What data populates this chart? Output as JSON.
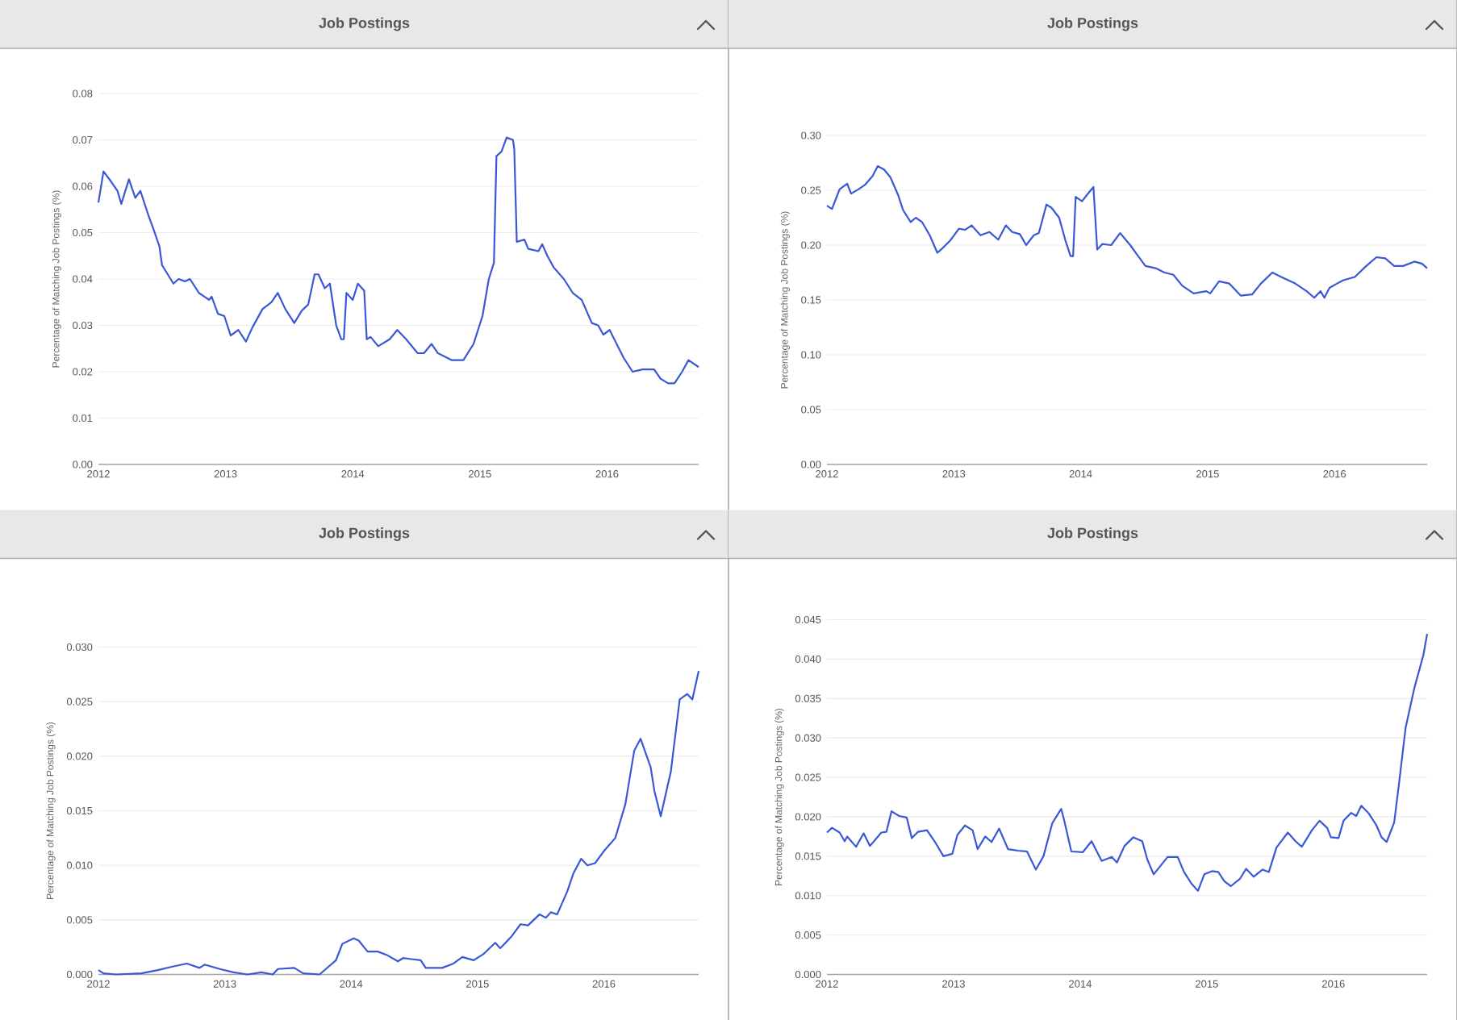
{
  "chart_data": [
    {
      "type": "line",
      "title": "Job Postings",
      "ylabel": "Percentage of Matching Job Postings (%)",
      "color": "#3a57d6",
      "grid": "y",
      "xlim": [
        2012,
        2016.72
      ],
      "ylim": [
        0,
        0.08
      ],
      "xticks": [
        2012,
        2013,
        2014,
        2015,
        2016
      ],
      "yticks": [
        {
          "value": 0,
          "label": "0.00"
        },
        {
          "value": 0.01,
          "label": "0.01"
        },
        {
          "value": 0.02,
          "label": "0.02"
        },
        {
          "value": 0.03,
          "label": "0.03"
        },
        {
          "value": 0.04,
          "label": "0.04"
        },
        {
          "value": 0.05,
          "label": "0.05"
        },
        {
          "value": 0.06,
          "label": "0.06"
        },
        {
          "value": 0.07,
          "label": "0.07"
        },
        {
          "value": 0.08,
          "label": "0.08"
        }
      ],
      "x": [
        2012,
        2012.04,
        2012.1,
        2012.15,
        2012.18,
        2012.24,
        2012.29,
        2012.33,
        2012.39,
        2012.43,
        2012.48,
        2012.5,
        2012.59,
        2012.63,
        2012.68,
        2012.72,
        2012.79,
        2012.87,
        2012.89,
        2012.94,
        2012.99,
        2013.04,
        2013.1,
        2013.16,
        2013.21,
        2013.29,
        2013.36,
        2013.41,
        2013.47,
        2013.54,
        2013.6,
        2013.65,
        2013.7,
        2013.73,
        2013.78,
        2013.82,
        2013.87,
        2013.91,
        2013.93,
        2013.95,
        2014,
        2014.04,
        2014.09,
        2014.11,
        2014.14,
        2014.2,
        2014.29,
        2014.35,
        2014.42,
        2014.51,
        2014.56,
        2014.62,
        2014.67,
        2014.78,
        2014.87,
        2014.95,
        2015.02,
        2015.07,
        2015.11,
        2015.13,
        2015.17,
        2015.21,
        2015.26,
        2015.27,
        2015.29,
        2015.35,
        2015.38,
        2015.46,
        2015.49,
        2015.53,
        2015.58,
        2015.66,
        2015.73,
        2015.8,
        2015.88,
        2015.93,
        2015.97,
        2016.02,
        2016.13,
        2016.2,
        2016.28,
        2016.37,
        2016.42,
        2016.48,
        2016.53,
        2016.59,
        2016.64,
        2016.72
      ],
      "values": [
        0.0565,
        0.0632,
        0.061,
        0.059,
        0.0562,
        0.0615,
        0.0575,
        0.059,
        0.054,
        0.051,
        0.047,
        0.043,
        0.039,
        0.04,
        0.0395,
        0.04,
        0.037,
        0.0355,
        0.0362,
        0.0325,
        0.032,
        0.0278,
        0.029,
        0.0265,
        0.0295,
        0.0335,
        0.035,
        0.037,
        0.0335,
        0.0305,
        0.0332,
        0.0345,
        0.041,
        0.041,
        0.038,
        0.039,
        0.03,
        0.027,
        0.027,
        0.037,
        0.0355,
        0.039,
        0.0375,
        0.027,
        0.0275,
        0.0255,
        0.027,
        0.029,
        0.027,
        0.024,
        0.024,
        0.026,
        0.024,
        0.0225,
        0.0225,
        0.026,
        0.032,
        0.04,
        0.0435,
        0.0665,
        0.0675,
        0.0705,
        0.07,
        0.068,
        0.048,
        0.0485,
        0.0465,
        0.046,
        0.0475,
        0.045,
        0.0425,
        0.04,
        0.037,
        0.0355,
        0.0305,
        0.03,
        0.028,
        0.029,
        0.023,
        0.02,
        0.0205,
        0.0205,
        0.0185,
        0.0175,
        0.0175,
        0.02,
        0.0225,
        0.021
      ]
    },
    {
      "type": "line",
      "title": "Job Postings",
      "ylabel": "Percentage of Matching Job Postings (%)",
      "color": "#3a57d6",
      "grid": "y",
      "xlim": [
        2012,
        2016.73
      ],
      "ylim": [
        0,
        0.3
      ],
      "xticks": [
        2012,
        2013,
        2014,
        2015,
        2016
      ],
      "yticks": [
        {
          "value": 0,
          "label": "0.00"
        },
        {
          "value": 0.05,
          "label": "0.05"
        },
        {
          "value": 0.1,
          "label": "0.10"
        },
        {
          "value": 0.15,
          "label": "0.15"
        },
        {
          "value": 0.2,
          "label": "0.20"
        },
        {
          "value": 0.25,
          "label": "0.25"
        },
        {
          "value": 0.3,
          "label": "0.30"
        }
      ],
      "x": [
        2012,
        2012.04,
        2012.1,
        2012.16,
        2012.19,
        2012.25,
        2012.3,
        2012.36,
        2012.4,
        2012.45,
        2012.5,
        2012.56,
        2012.6,
        2012.66,
        2012.7,
        2012.75,
        2012.81,
        2012.87,
        2012.9,
        2012.97,
        2013.04,
        2013.09,
        2013.14,
        2013.21,
        2013.28,
        2013.35,
        2013.41,
        2013.46,
        2013.52,
        2013.57,
        2013.63,
        2013.67,
        2013.73,
        2013.77,
        2013.83,
        2013.88,
        2013.92,
        2013.94,
        2013.96,
        2014.01,
        2014.05,
        2014.1,
        2014.13,
        2014.17,
        2014.24,
        2014.31,
        2014.39,
        2014.44,
        2014.51,
        2014.59,
        2014.66,
        2014.73,
        2014.8,
        2014.89,
        2014.99,
        2015.02,
        2015.09,
        2015.17,
        2015.26,
        2015.35,
        2015.42,
        2015.51,
        2015.58,
        2015.69,
        2015.78,
        2015.84,
        2015.89,
        2015.92,
        2015.96,
        2016.02,
        2016.07,
        2016.16,
        2016.25,
        2016.33,
        2016.4,
        2016.47,
        2016.54,
        2016.63,
        2016.69,
        2016.73
      ],
      "values": [
        0.236,
        0.233,
        0.251,
        0.256,
        0.247,
        0.251,
        0.255,
        0.263,
        0.272,
        0.269,
        0.262,
        0.246,
        0.232,
        0.221,
        0.225,
        0.221,
        0.209,
        0.193,
        0.196,
        0.204,
        0.215,
        0.214,
        0.218,
        0.209,
        0.212,
        0.205,
        0.218,
        0.212,
        0.21,
        0.2,
        0.209,
        0.211,
        0.237,
        0.234,
        0.225,
        0.204,
        0.19,
        0.19,
        0.244,
        0.24,
        0.246,
        0.253,
        0.196,
        0.201,
        0.2,
        0.211,
        0.2,
        0.192,
        0.181,
        0.179,
        0.175,
        0.173,
        0.163,
        0.156,
        0.158,
        0.156,
        0.167,
        0.165,
        0.154,
        0.155,
        0.165,
        0.175,
        0.171,
        0.165,
        0.158,
        0.152,
        0.158,
        0.152,
        0.161,
        0.165,
        0.168,
        0.171,
        0.181,
        0.189,
        0.188,
        0.181,
        0.181,
        0.185,
        0.183,
        0.179
      ]
    },
    {
      "type": "line",
      "title": "Job Postings",
      "ylabel": "Percentage of Matching Job Postings (%)",
      "color": "#3a57d6",
      "grid": "y",
      "xlim": [
        2012,
        2016.75
      ],
      "ylim": [
        0,
        0.03
      ],
      "xticks": [
        2012,
        2013,
        2014,
        2015,
        2016
      ],
      "yticks": [
        {
          "value": 0,
          "label": "0.000"
        },
        {
          "value": 0.005,
          "label": "0.005"
        },
        {
          "value": 0.01,
          "label": "0.010"
        },
        {
          "value": 0.015,
          "label": "0.015"
        },
        {
          "value": 0.02,
          "label": "0.020"
        },
        {
          "value": 0.025,
          "label": "0.025"
        },
        {
          "value": 0.03,
          "label": "0.030"
        }
      ],
      "x": [
        2012,
        2012.04,
        2012.14,
        2012.34,
        2012.47,
        2012.58,
        2012.7,
        2012.8,
        2012.84,
        2012.96,
        2013.07,
        2013.18,
        2013.29,
        2013.38,
        2013.42,
        2013.55,
        2013.62,
        2013.75,
        2013.8,
        2013.88,
        2013.93,
        2014.02,
        2014.06,
        2014.13,
        2014.21,
        2014.28,
        2014.37,
        2014.41,
        2014.55,
        2014.59,
        2014.72,
        2014.81,
        2014.88,
        2014.97,
        2015.05,
        2015.14,
        2015.18,
        2015.27,
        2015.34,
        2015.4,
        2015.49,
        2015.54,
        2015.58,
        2015.63,
        2015.71,
        2015.76,
        2015.82,
        2015.87,
        2015.93,
        2016,
        2016.09,
        2016.17,
        2016.24,
        2016.29,
        2016.37,
        2016.4,
        2016.45,
        2016.53,
        2016.6,
        2016.66,
        2016.7,
        2016.75
      ],
      "values": [
        0.0004,
        0.0001,
        0,
        0.0001,
        0.0004,
        0.0007,
        0.001,
        0.0006,
        0.0009,
        0.0005,
        0.0002,
        0,
        0.0002,
        0,
        0.0005,
        0.0006,
        0.0001,
        0,
        0.0005,
        0.0013,
        0.0028,
        0.0033,
        0.0031,
        0.0021,
        0.0021,
        0.0018,
        0.0012,
        0.0015,
        0.0013,
        0.0006,
        0.0006,
        0.001,
        0.0016,
        0.0013,
        0.0019,
        0.0029,
        0.0024,
        0.0035,
        0.0046,
        0.0045,
        0.0055,
        0.0052,
        0.0057,
        0.0055,
        0.0076,
        0.0093,
        0.0106,
        0.01,
        0.0102,
        0.0113,
        0.0125,
        0.0156,
        0.0205,
        0.0216,
        0.019,
        0.0168,
        0.0145,
        0.0186,
        0.0252,
        0.0257,
        0.0252,
        0.0278
      ]
    },
    {
      "type": "line",
      "title": "Job Postings",
      "ylabel": "Percentage of Matching Job Postings (%)",
      "color": "#3a57d6",
      "grid": "y",
      "xlim": [
        2012,
        2016.74
      ],
      "ylim": [
        0,
        0.045
      ],
      "xticks": [
        2012,
        2013,
        2014,
        2015,
        2016
      ],
      "yticks": [
        {
          "value": 0,
          "label": "0.000"
        },
        {
          "value": 0.005,
          "label": "0.005"
        },
        {
          "value": 0.01,
          "label": "0.010"
        },
        {
          "value": 0.015,
          "label": "0.015"
        },
        {
          "value": 0.02,
          "label": "0.020"
        },
        {
          "value": 0.025,
          "label": "0.025"
        },
        {
          "value": 0.03,
          "label": "0.030"
        },
        {
          "value": 0.035,
          "label": "0.035"
        },
        {
          "value": 0.04,
          "label": "0.040"
        },
        {
          "value": 0.045,
          "label": "0.045"
        }
      ],
      "x": [
        2012,
        2012.04,
        2012.1,
        2012.14,
        2012.16,
        2012.23,
        2012.29,
        2012.34,
        2012.43,
        2012.47,
        2012.51,
        2012.57,
        2012.63,
        2012.67,
        2012.72,
        2012.79,
        2012.85,
        2012.92,
        2012.99,
        2013.03,
        2013.09,
        2013.15,
        2013.19,
        2013.25,
        2013.3,
        2013.36,
        2013.43,
        2013.51,
        2013.58,
        2013.65,
        2013.71,
        2013.78,
        2013.85,
        2013.87,
        2013.93,
        2014.02,
        2014.09,
        2014.17,
        2014.25,
        2014.29,
        2014.35,
        2014.42,
        2014.49,
        2014.53,
        2014.58,
        2014.69,
        2014.77,
        2014.82,
        2014.88,
        2014.93,
        2014.98,
        2015.04,
        2015.09,
        2015.14,
        2015.19,
        2015.26,
        2015.31,
        2015.37,
        2015.44,
        2015.49,
        2015.55,
        2015.64,
        2015.7,
        2015.75,
        2015.83,
        2015.89,
        2015.95,
        2015.98,
        2016.04,
        2016.08,
        2016.14,
        2016.18,
        2016.22,
        2016.28,
        2016.34,
        2016.38,
        2016.42,
        2016.48,
        2016.52,
        2016.57,
        2016.64,
        2016.71,
        2016.74
      ],
      "values": [
        0.018,
        0.0186,
        0.018,
        0.0169,
        0.0175,
        0.0162,
        0.0179,
        0.0163,
        0.018,
        0.0181,
        0.0207,
        0.0201,
        0.0199,
        0.0173,
        0.0181,
        0.0183,
        0.0169,
        0.015,
        0.0153,
        0.0177,
        0.0189,
        0.0183,
        0.0159,
        0.0175,
        0.0168,
        0.0185,
        0.0159,
        0.0157,
        0.0156,
        0.0133,
        0.015,
        0.0192,
        0.021,
        0.0198,
        0.0156,
        0.0155,
        0.0169,
        0.0144,
        0.0149,
        0.0142,
        0.0163,
        0.0174,
        0.0169,
        0.0146,
        0.0127,
        0.0149,
        0.0149,
        0.013,
        0.0115,
        0.0106,
        0.0127,
        0.0131,
        0.013,
        0.0118,
        0.0112,
        0.0121,
        0.0134,
        0.0124,
        0.0133,
        0.013,
        0.0161,
        0.018,
        0.0169,
        0.0162,
        0.0183,
        0.0195,
        0.0186,
        0.0174,
        0.0173,
        0.0195,
        0.0205,
        0.0201,
        0.0214,
        0.0204,
        0.0189,
        0.0174,
        0.0168,
        0.0193,
        0.0245,
        0.0313,
        0.0364,
        0.0405,
        0.0432
      ]
    }
  ]
}
